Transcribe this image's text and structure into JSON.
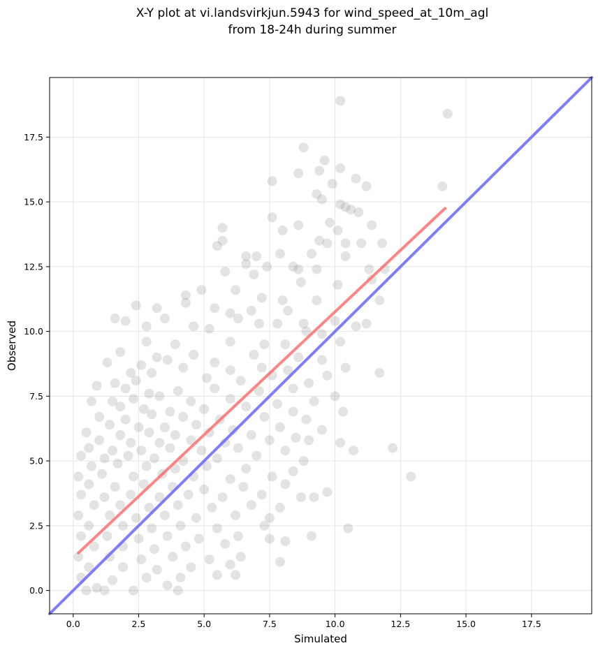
{
  "chart_data": {
    "type": "scatter",
    "title": [
      "X-Y plot at vi.landsvirkjun.5943 for wind_speed_at_10m_agl",
      "from 18-24h during summer"
    ],
    "xlabel": "Simulated",
    "ylabel": "Observed",
    "xlim": [
      -0.9,
      19.8
    ],
    "ylim": [
      -0.9,
      19.8
    ],
    "x_ticks": [
      "0.0",
      "2.5",
      "5.0",
      "7.5",
      "10.0",
      "12.5",
      "15.0",
      "17.5"
    ],
    "y_ticks": [
      "0.0",
      "2.5",
      "5.0",
      "7.5",
      "10.0",
      "12.5",
      "15.0",
      "17.5"
    ],
    "grid": true,
    "legend": "none",
    "colors": {
      "points": "#808080",
      "fit_line": "#ff6666",
      "identity_line": "#6666ff",
      "grid": "#e5e5e5"
    },
    "fit_line": {
      "x": [
        0.2,
        14.2
      ],
      "y": [
        1.45,
        14.75
      ]
    },
    "identity_line": {
      "x": [
        -0.9,
        19.8
      ],
      "y": [
        -0.9,
        19.8
      ]
    },
    "series": [
      {
        "values": [
          [
            10.2,
            18.9
          ],
          [
            14.3,
            18.4
          ],
          [
            8.8,
            17.1
          ],
          [
            9.6,
            16.6
          ],
          [
            9.4,
            16.2
          ],
          [
            10.2,
            16.3
          ],
          [
            8.6,
            16.1
          ],
          [
            7.6,
            15.8
          ],
          [
            10.8,
            15.9
          ],
          [
            11.2,
            15.6
          ],
          [
            14.1,
            15.6
          ],
          [
            9.9,
            15.7
          ],
          [
            9.3,
            15.3
          ],
          [
            9.5,
            15.1
          ],
          [
            10.2,
            14.9
          ],
          [
            10.4,
            14.8
          ],
          [
            10.6,
            14.7
          ],
          [
            10.9,
            14.6
          ],
          [
            7.6,
            14.4
          ],
          [
            11.4,
            14.1
          ],
          [
            8.6,
            14.1
          ],
          [
            9.8,
            14.2
          ],
          [
            5.7,
            14.0
          ],
          [
            10.1,
            13.9
          ],
          [
            8.0,
            13.9
          ],
          [
            5.7,
            13.5
          ],
          [
            9.4,
            13.5
          ],
          [
            9.7,
            13.4
          ],
          [
            10.4,
            13.4
          ],
          [
            11.0,
            13.4
          ],
          [
            11.8,
            13.4
          ],
          [
            5.5,
            13.3
          ],
          [
            6.6,
            12.9
          ],
          [
            7.0,
            12.9
          ],
          [
            7.9,
            13.0
          ],
          [
            9.1,
            13.0
          ],
          [
            10.4,
            12.9
          ],
          [
            8.6,
            12.4
          ],
          [
            9.3,
            12.4
          ],
          [
            11.3,
            12.4
          ],
          [
            11.9,
            12.4
          ],
          [
            6.6,
            12.6
          ],
          [
            7.4,
            12.5
          ],
          [
            8.4,
            12.5
          ],
          [
            5.8,
            12.3
          ],
          [
            6.9,
            12.2
          ],
          [
            8.7,
            11.9
          ],
          [
            10.1,
            11.8
          ],
          [
            11.4,
            12.0
          ],
          [
            4.9,
            11.6
          ],
          [
            6.2,
            11.6
          ],
          [
            7.2,
            11.3
          ],
          [
            8.0,
            11.2
          ],
          [
            9.3,
            11.2
          ],
          [
            11.7,
            11.2
          ],
          [
            4.3,
            11.4
          ],
          [
            2.4,
            11.0
          ],
          [
            3.2,
            10.9
          ],
          [
            4.3,
            11.1
          ],
          [
            5.4,
            10.9
          ],
          [
            6.0,
            10.7
          ],
          [
            6.8,
            10.8
          ],
          [
            8.2,
            10.8
          ],
          [
            10.0,
            10.4
          ],
          [
            3.5,
            10.5
          ],
          [
            6.3,
            10.5
          ],
          [
            7.8,
            10.3
          ],
          [
            8.8,
            10.3
          ],
          [
            1.6,
            10.5
          ],
          [
            2.0,
            10.4
          ],
          [
            2.8,
            10.2
          ],
          [
            4.6,
            10.2
          ],
          [
            5.2,
            10.1
          ],
          [
            7.1,
            10.3
          ],
          [
            8.9,
            10.0
          ],
          [
            10.8,
            10.2
          ],
          [
            11.2,
            10.3
          ],
          [
            9.5,
            9.9
          ],
          [
            2.8,
            9.6
          ],
          [
            3.9,
            9.5
          ],
          [
            6.0,
            9.6
          ],
          [
            7.3,
            9.5
          ],
          [
            8.1,
            9.5
          ],
          [
            10.2,
            9.6
          ],
          [
            1.8,
            9.2
          ],
          [
            3.2,
            9.0
          ],
          [
            4.6,
            9.1
          ],
          [
            6.9,
            9.1
          ],
          [
            8.6,
            9.0
          ],
          [
            9.5,
            8.9
          ],
          [
            1.3,
            8.8
          ],
          [
            2.6,
            8.7
          ],
          [
            3.6,
            8.9
          ],
          [
            5.4,
            8.8
          ],
          [
            7.2,
            8.6
          ],
          [
            10.4,
            8.6
          ],
          [
            11.7,
            8.4
          ],
          [
            2.2,
            8.4
          ],
          [
            3.0,
            8.4
          ],
          [
            4.2,
            8.6
          ],
          [
            6.0,
            8.5
          ],
          [
            8.2,
            8.5
          ],
          [
            9.7,
            8.3
          ],
          [
            1.6,
            8.0
          ],
          [
            2.4,
            8.1
          ],
          [
            5.1,
            8.2
          ],
          [
            6.4,
            8.1
          ],
          [
            7.6,
            8.3
          ],
          [
            9.0,
            8.0
          ],
          [
            0.9,
            7.9
          ],
          [
            2.0,
            7.8
          ],
          [
            2.9,
            7.6
          ],
          [
            4.0,
            7.7
          ],
          [
            5.4,
            7.8
          ],
          [
            7.1,
            7.7
          ],
          [
            8.4,
            7.8
          ],
          [
            10.0,
            7.5
          ],
          [
            0.7,
            7.3
          ],
          [
            1.5,
            7.3
          ],
          [
            2.3,
            7.4
          ],
          [
            3.3,
            7.5
          ],
          [
            4.5,
            7.3
          ],
          [
            6.0,
            7.4
          ],
          [
            7.8,
            7.2
          ],
          [
            9.2,
            7.3
          ],
          [
            1.8,
            7.1
          ],
          [
            2.7,
            7.0
          ],
          [
            3.7,
            6.9
          ],
          [
            5.0,
            7.0
          ],
          [
            6.6,
            7.1
          ],
          [
            8.4,
            6.9
          ],
          [
            10.3,
            6.9
          ],
          [
            1.0,
            6.7
          ],
          [
            2.0,
            6.6
          ],
          [
            3.0,
            6.8
          ],
          [
            4.2,
            6.7
          ],
          [
            5.6,
            6.6
          ],
          [
            7.3,
            6.7
          ],
          [
            8.9,
            6.6
          ],
          [
            1.4,
            6.4
          ],
          [
            2.5,
            6.3
          ],
          [
            3.5,
            6.3
          ],
          [
            4.7,
            6.4
          ],
          [
            6.1,
            6.2
          ],
          [
            7.9,
            6.3
          ],
          [
            9.5,
            6.2
          ],
          [
            0.5,
            6.1
          ],
          [
            1.8,
            6.0
          ],
          [
            2.9,
            6.1
          ],
          [
            3.9,
            6.0
          ],
          [
            5.2,
            6.1
          ],
          [
            6.8,
            6.0
          ],
          [
            8.5,
            5.9
          ],
          [
            10.2,
            5.7
          ],
          [
            1.0,
            5.8
          ],
          [
            2.2,
            5.7
          ],
          [
            3.3,
            5.7
          ],
          [
            4.5,
            5.8
          ],
          [
            5.8,
            5.7
          ],
          [
            7.5,
            5.8
          ],
          [
            9.0,
            5.8
          ],
          [
            0.6,
            5.5
          ],
          [
            1.5,
            5.4
          ],
          [
            2.6,
            5.4
          ],
          [
            3.7,
            5.5
          ],
          [
            4.9,
            5.4
          ],
          [
            6.3,
            5.5
          ],
          [
            8.1,
            5.4
          ],
          [
            10.7,
            5.4
          ],
          [
            12.2,
            5.5
          ],
          [
            0.3,
            5.2
          ],
          [
            1.2,
            5.1
          ],
          [
            2.1,
            5.2
          ],
          [
            3.1,
            5.1
          ],
          [
            4.2,
            5.0
          ],
          [
            5.5,
            5.1
          ],
          [
            7.0,
            5.2
          ],
          [
            8.8,
            5.0
          ],
          [
            0.7,
            4.8
          ],
          [
            1.7,
            4.9
          ],
          [
            2.8,
            4.8
          ],
          [
            3.9,
            4.7
          ],
          [
            5.1,
            4.8
          ],
          [
            6.6,
            4.7
          ],
          [
            8.4,
            4.6
          ],
          [
            0.2,
            4.4
          ],
          [
            1.1,
            4.5
          ],
          [
            2.3,
            4.4
          ],
          [
            3.4,
            4.5
          ],
          [
            4.6,
            4.4
          ],
          [
            6.0,
            4.3
          ],
          [
            7.6,
            4.4
          ],
          [
            12.9,
            4.4
          ],
          [
            0.6,
            4.1
          ],
          [
            1.6,
            4.0
          ],
          [
            2.7,
            4.1
          ],
          [
            3.8,
            4.0
          ],
          [
            5.0,
            3.9
          ],
          [
            6.5,
            4.0
          ],
          [
            8.1,
            4.1
          ],
          [
            0.3,
            3.7
          ],
          [
            1.2,
            3.6
          ],
          [
            2.2,
            3.7
          ],
          [
            3.3,
            3.6
          ],
          [
            4.4,
            3.7
          ],
          [
            5.7,
            3.6
          ],
          [
            7.2,
            3.7
          ],
          [
            8.7,
            3.6
          ],
          [
            9.2,
            3.6
          ],
          [
            9.7,
            3.8
          ],
          [
            0.8,
            3.3
          ],
          [
            1.8,
            3.3
          ],
          [
            2.9,
            3.2
          ],
          [
            4.0,
            3.3
          ],
          [
            5.3,
            3.2
          ],
          [
            6.8,
            3.3
          ],
          [
            7.9,
            3.2
          ],
          [
            0.2,
            2.9
          ],
          [
            1.4,
            2.9
          ],
          [
            2.4,
            2.8
          ],
          [
            3.5,
            2.9
          ],
          [
            4.7,
            2.8
          ],
          [
            6.2,
            2.9
          ],
          [
            7.5,
            2.8
          ],
          [
            0.6,
            2.5
          ],
          [
            1.9,
            2.5
          ],
          [
            3.0,
            2.4
          ],
          [
            4.1,
            2.5
          ],
          [
            5.5,
            2.4
          ],
          [
            7.3,
            2.5
          ],
          [
            10.5,
            2.4
          ],
          [
            0.3,
            2.1
          ],
          [
            1.3,
            2.1
          ],
          [
            2.5,
            2.0
          ],
          [
            3.6,
            2.1
          ],
          [
            4.8,
            2.0
          ],
          [
            6.3,
            2.1
          ],
          [
            7.5,
            2.0
          ],
          [
            9.1,
            2.1
          ],
          [
            0.8,
            1.7
          ],
          [
            1.9,
            1.7
          ],
          [
            3.1,
            1.6
          ],
          [
            4.3,
            1.7
          ],
          [
            5.8,
            1.8
          ],
          [
            8.1,
            1.9
          ],
          [
            0.2,
            1.3
          ],
          [
            1.4,
            1.3
          ],
          [
            2.6,
            1.2
          ],
          [
            3.8,
            1.3
          ],
          [
            5.2,
            1.2
          ],
          [
            6.4,
            1.3
          ],
          [
            0.6,
            0.9
          ],
          [
            1.9,
            0.9
          ],
          [
            3.2,
            0.8
          ],
          [
            4.5,
            0.9
          ],
          [
            6.0,
            1.0
          ],
          [
            7.9,
            1.1
          ],
          [
            0.3,
            0.5
          ],
          [
            1.5,
            0.4
          ],
          [
            2.8,
            0.5
          ],
          [
            4.1,
            0.5
          ],
          [
            5.5,
            0.6
          ],
          [
            6.2,
            0.6
          ],
          [
            0.9,
            0.1
          ],
          [
            2.3,
            0.0
          ],
          [
            3.6,
            0.2
          ],
          [
            4.0,
            0.0
          ],
          [
            1.2,
            0.0
          ],
          [
            0.5,
            0.0
          ]
        ]
      }
    ]
  }
}
